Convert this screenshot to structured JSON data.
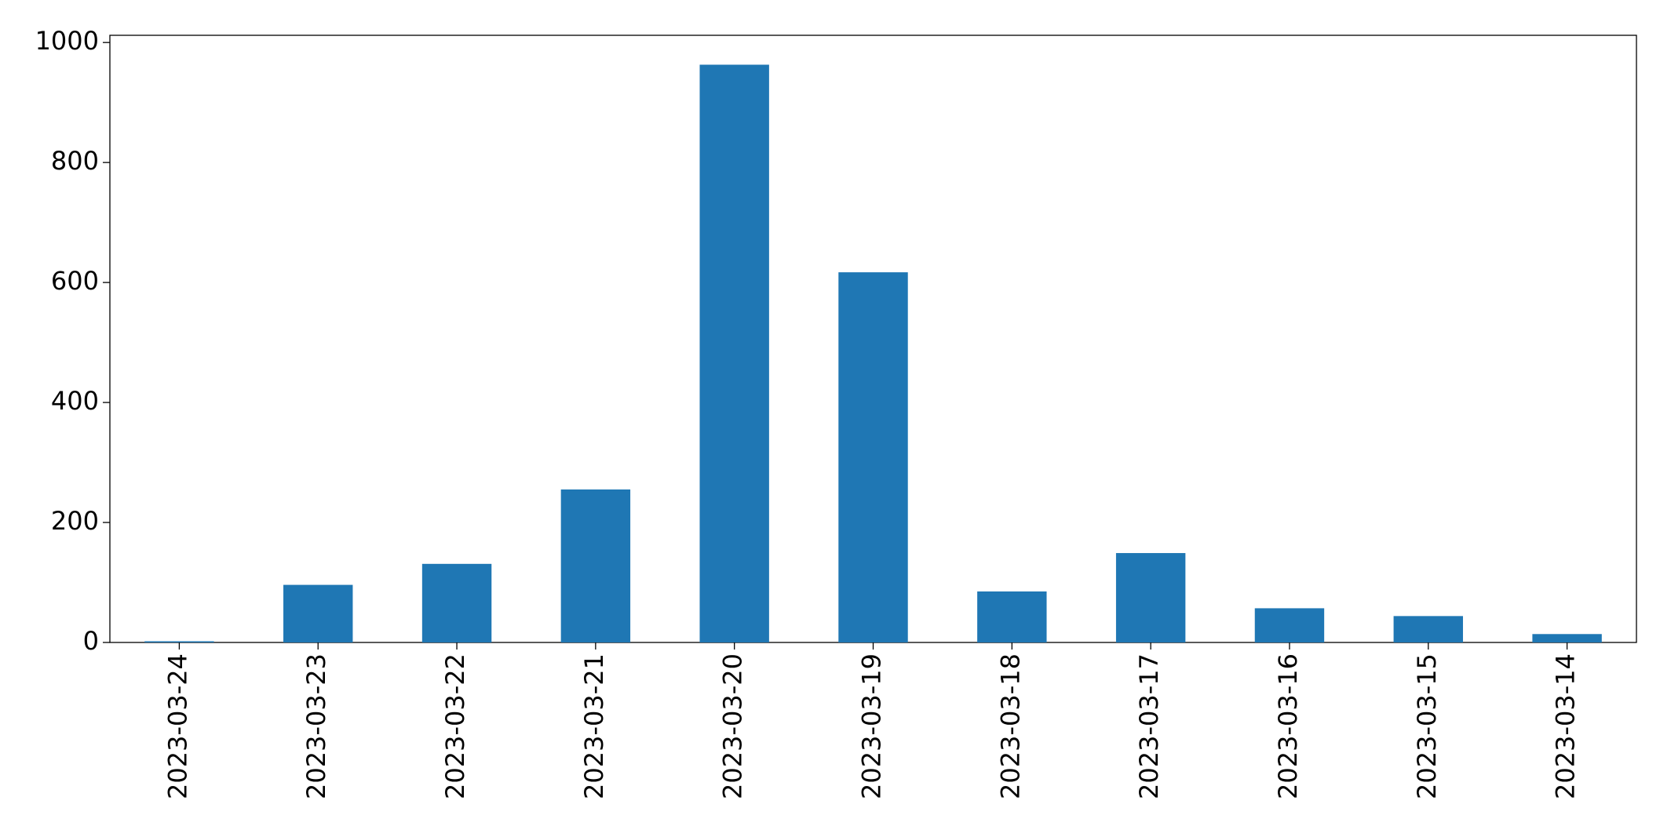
{
  "chart_data": {
    "type": "bar",
    "categories": [
      "2023-03-24",
      "2023-03-23",
      "2023-03-22",
      "2023-03-21",
      "2023-03-20",
      "2023-03-19",
      "2023-03-18",
      "2023-03-17",
      "2023-03-16",
      "2023-03-15",
      "2023-03-14"
    ],
    "values": [
      2,
      96,
      131,
      255,
      963,
      617,
      85,
      149,
      57,
      44,
      14
    ],
    "color": "#1f77b4",
    "ylim": [
      0,
      1012
    ],
    "yticks": [
      0,
      200,
      400,
      600,
      800,
      1000
    ],
    "grid": false
  }
}
